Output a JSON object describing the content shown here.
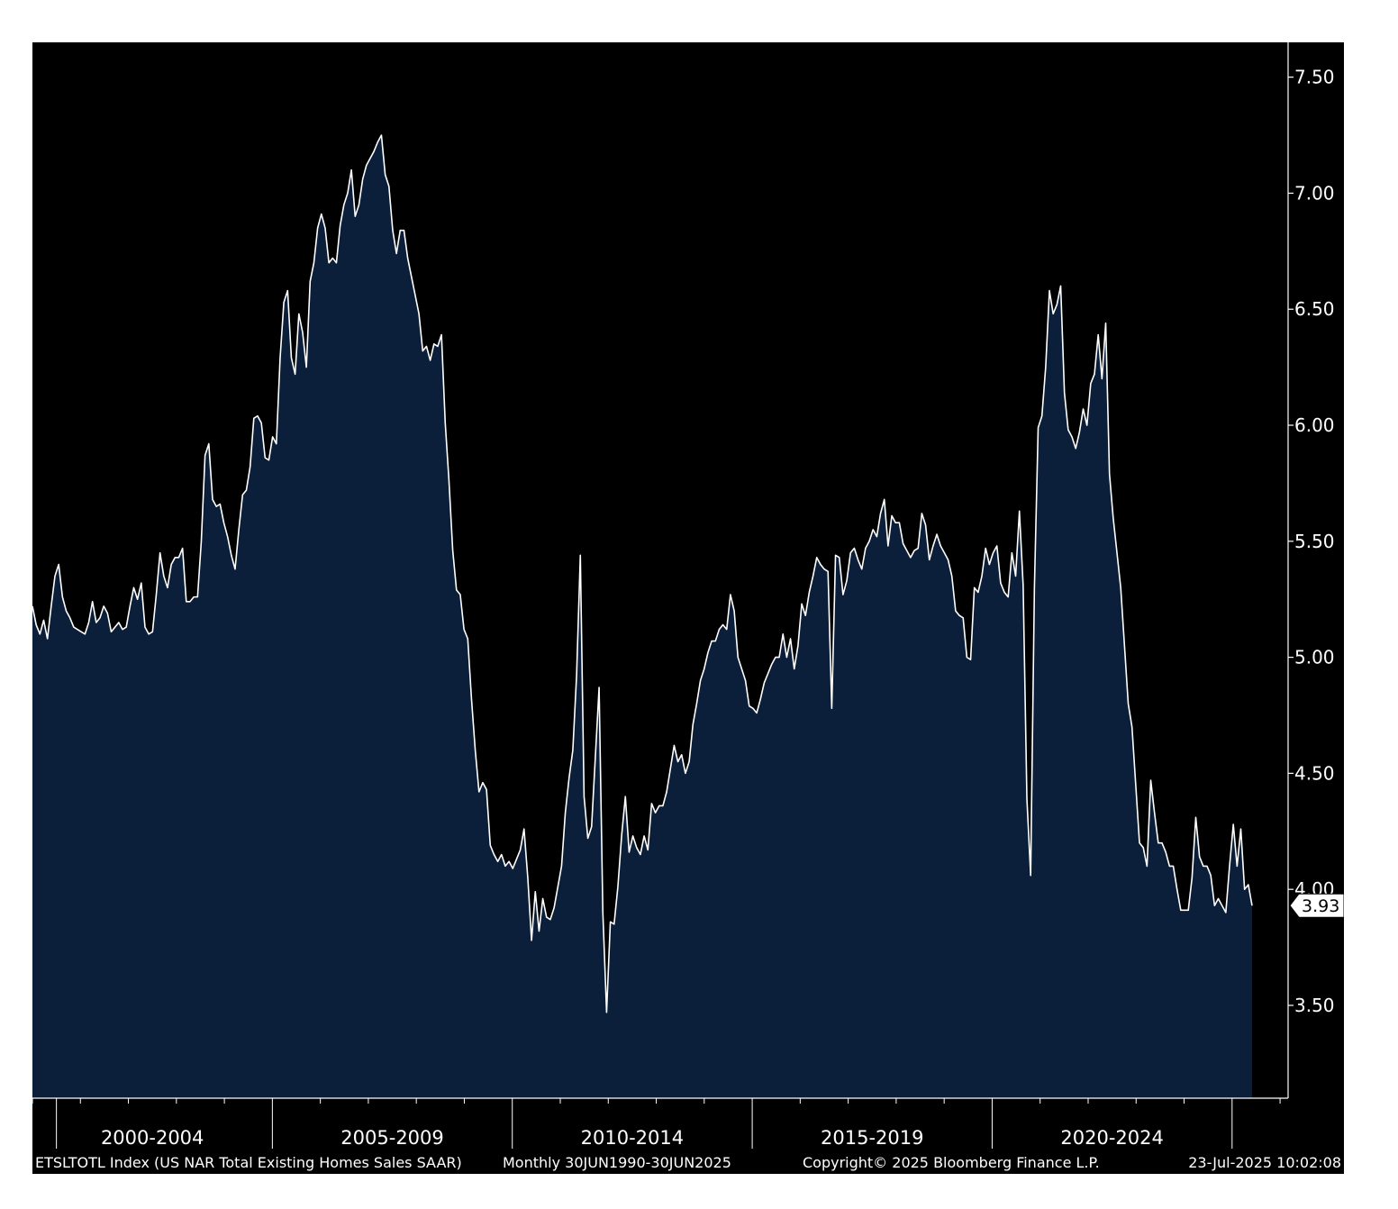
{
  "chart_data": {
    "type": "area",
    "title": "",
    "xlabel": "",
    "ylabel": "",
    "ylim": [
      3.1,
      7.65
    ],
    "yticks": [
      "3.50",
      "4.00",
      "4.50",
      "5.00",
      "5.50",
      "6.00",
      "6.50",
      "7.00",
      "7.50"
    ],
    "xtick_labels": [
      "2000-2004",
      "2005-2009",
      "2010-2014",
      "2015-2019",
      "2020-2024"
    ],
    "x_start": "2000-01",
    "x_end": "2025-06",
    "grid": false,
    "last_value": "3.93",
    "series": [
      {
        "values": [
          5.22,
          5.14,
          5.1,
          5.16,
          5.08,
          5.22,
          5.35,
          5.4,
          5.26,
          5.2,
          5.17,
          5.13,
          5.12,
          5.11,
          5.1,
          5.15,
          5.24,
          5.15,
          5.17,
          5.22,
          5.19,
          5.11,
          5.13,
          5.15,
          5.12,
          5.13,
          5.22,
          5.3,
          5.25,
          5.32,
          5.13,
          5.1,
          5.11,
          5.27,
          5.45,
          5.35,
          5.3,
          5.4,
          5.43,
          5.43,
          5.47,
          5.24,
          5.24,
          5.26,
          5.26,
          5.5,
          5.87,
          5.92,
          5.68,
          5.65,
          5.66,
          5.58,
          5.52,
          5.44,
          5.38,
          5.55,
          5.7,
          5.72,
          5.82,
          6.03,
          6.04,
          6.01,
          5.86,
          5.85,
          5.95,
          5.92,
          6.29,
          6.53,
          6.58,
          6.29,
          6.22,
          6.48,
          6.4,
          6.25,
          6.62,
          6.7,
          6.85,
          6.91,
          6.85,
          6.7,
          6.72,
          6.7,
          6.86,
          6.95,
          7.0,
          7.1,
          6.9,
          6.95,
          7.06,
          7.12,
          7.15,
          7.18,
          7.22,
          7.25,
          7.08,
          7.03,
          6.84,
          6.74,
          6.84,
          6.84,
          6.72,
          6.64,
          6.56,
          6.48,
          6.32,
          6.34,
          6.28,
          6.35,
          6.34,
          6.39,
          6.01,
          5.76,
          5.46,
          5.29,
          5.27,
          5.12,
          5.08,
          4.82,
          4.6,
          4.42,
          4.46,
          4.43,
          4.19,
          4.15,
          4.12,
          4.15,
          4.1,
          4.12,
          4.09,
          4.13,
          4.17,
          4.26,
          4.05,
          3.78,
          3.99,
          3.82,
          3.96,
          3.88,
          3.87,
          3.92,
          4.01,
          4.1,
          4.33,
          4.48,
          4.6,
          4.92,
          5.44,
          4.4,
          4.22,
          4.27,
          4.57,
          4.87,
          3.9,
          3.47,
          3.86,
          3.85,
          4.01,
          4.23,
          4.4,
          4.16,
          4.23,
          4.18,
          4.15,
          4.23,
          4.17,
          4.37,
          4.33,
          4.36,
          4.36,
          4.42,
          4.52,
          4.62,
          4.55,
          4.58,
          4.5,
          4.55,
          4.71,
          4.8,
          4.9,
          4.95,
          5.02,
          5.07,
          5.07,
          5.12,
          5.14,
          5.12,
          5.27,
          5.2,
          5.0,
          4.95,
          4.9,
          4.79,
          4.78,
          4.76,
          4.82,
          4.89,
          4.93,
          4.97,
          5.0,
          5.0,
          5.1,
          5.0,
          5.08,
          4.95,
          5.05,
          5.23,
          5.18,
          5.28,
          5.35,
          5.43,
          5.4,
          5.38,
          5.37,
          4.78,
          5.44,
          5.43,
          5.27,
          5.33,
          5.45,
          5.47,
          5.42,
          5.38,
          5.47,
          5.5,
          5.55,
          5.52,
          5.62,
          5.68,
          5.48,
          5.61,
          5.58,
          5.58,
          5.49,
          5.46,
          5.43,
          5.46,
          5.47,
          5.62,
          5.57,
          5.42,
          5.48,
          5.53,
          5.48,
          5.45,
          5.42,
          5.35,
          5.2,
          5.18,
          5.17,
          5.0,
          4.99,
          5.3,
          5.28,
          5.35,
          5.47,
          5.4,
          5.45,
          5.48,
          5.32,
          5.28,
          5.26,
          5.45,
          5.35,
          5.63,
          5.31,
          4.39,
          4.06,
          5.3,
          5.99,
          6.04,
          6.25,
          6.58,
          6.48,
          6.52,
          6.6,
          6.14,
          5.98,
          5.95,
          5.9,
          5.97,
          6.07,
          6.0,
          6.18,
          6.22,
          6.39,
          6.2,
          6.44,
          5.79,
          5.6,
          5.45,
          5.3,
          5.05,
          4.8,
          4.7,
          4.45,
          4.2,
          4.18,
          4.1,
          4.47,
          4.33,
          4.2,
          4.2,
          4.16,
          4.1,
          4.1,
          4.0,
          3.91,
          3.91,
          3.91,
          4.05,
          4.31,
          4.14,
          4.1,
          4.1,
          4.06,
          3.93,
          3.96,
          3.93,
          3.9,
          4.1,
          4.28,
          4.1,
          4.26,
          4.0,
          4.02,
          3.93
        ]
      }
    ]
  },
  "footer": {
    "ticker": "ETSLTOTL Index (US NAR Total Existing Homes Sales SAAR)",
    "range": "Monthly 30JUN1990-30JUN2025",
    "copyright": "Copyright© 2025 Bloomberg Finance L.P.",
    "timestamp": "23-Jul-2025 10:02:08"
  },
  "colors": {
    "panel_bg": "#000000",
    "area_fill": "#0b1e3a",
    "line": "#ffffff",
    "page_bg": "#ffffff"
  }
}
